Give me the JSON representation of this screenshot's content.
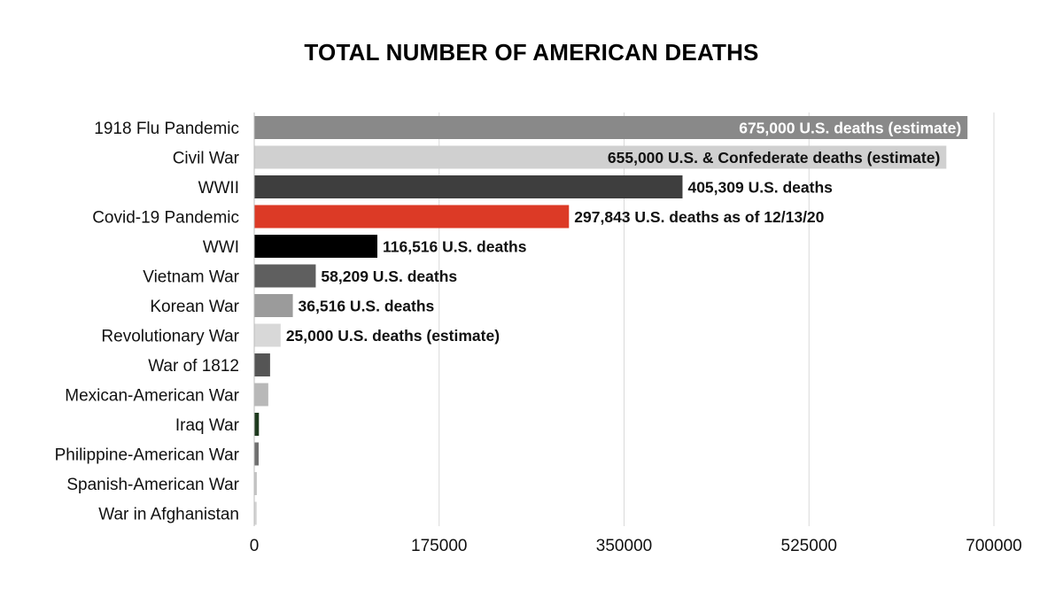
{
  "chart_data": {
    "type": "bar",
    "orientation": "horizontal",
    "title": "TOTAL NUMBER OF AMERICAN DEATHS",
    "xlabel": "",
    "ylabel": "",
    "xlim": [
      0,
      700000
    ],
    "x_ticks": [
      0,
      175000,
      350000,
      525000,
      700000
    ],
    "x_tick_labels": [
      "0",
      "175000",
      "350000",
      "525000",
      "700000"
    ],
    "grid": "vertical",
    "categories": [
      "1918 Flu Pandemic",
      "Civil War",
      "WWII",
      "Covid-19 Pandemic",
      "WWI",
      "Vietnam War",
      "Korean War",
      "Revolutionary War",
      "War of 1812",
      "Mexican-American War",
      "Iraq War",
      "Philippine-American War",
      "Spanish-American War",
      "War in Afghanistan"
    ],
    "values": [
      675000,
      655000,
      405309,
      297843,
      116516,
      58209,
      36516,
      25000,
      15000,
      13283,
      4431,
      4196,
      2446,
      2300
    ],
    "colors": [
      "#898989",
      "#d0d0d0",
      "#3e3e3e",
      "#dc3a26",
      "#000000",
      "#5f5f5f",
      "#9b9b9b",
      "#d8d8d8",
      "#555555",
      "#b8b8b8",
      "#1e3a1e",
      "#707070",
      "#c4c4c4",
      "#d4d4d4"
    ],
    "data_labels": [
      "675,000 U.S. deaths (estimate)",
      "655,000 U.S. & Confederate deaths (estimate)",
      "405,309 U.S. deaths",
      "297,843 U.S. deaths as of 12/13/20",
      "116,516 U.S. deaths",
      "58,209 U.S. deaths",
      "36,516 U.S. deaths",
      "25,000 U.S. deaths (estimate)",
      "",
      "",
      "",
      "",
      "",
      ""
    ],
    "label_inside": [
      true,
      true,
      false,
      false,
      false,
      false,
      false,
      false,
      false,
      false,
      false,
      false,
      false,
      false
    ],
    "label_colors": [
      "#ffffff",
      "#111111",
      "#111111",
      "#111111",
      "#111111",
      "#111111",
      "#111111",
      "#111111",
      "#111111",
      "#111111",
      "#111111",
      "#111111",
      "#111111",
      "#111111"
    ],
    "legend": "none"
  }
}
